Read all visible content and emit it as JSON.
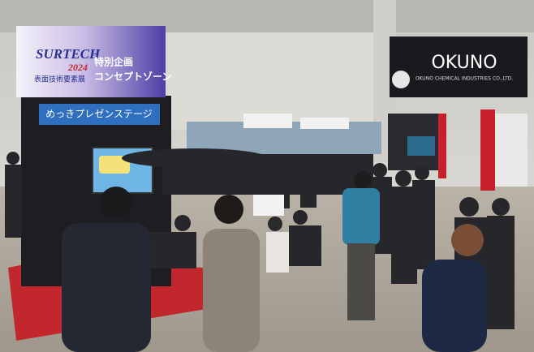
{
  "signs": {
    "surtech": {
      "brand": "SURTECH",
      "year": "2024",
      "subtitle": "表面技術要素展",
      "zone_line1": "特別企画",
      "zone_line2": "コンセプトゾーン"
    },
    "stage": "めっきプレゼンステージ",
    "okuno": {
      "name": "OKUNO",
      "company": "OKUNO CHEMICAL INDUSTRIES CO.,LTD."
    }
  }
}
